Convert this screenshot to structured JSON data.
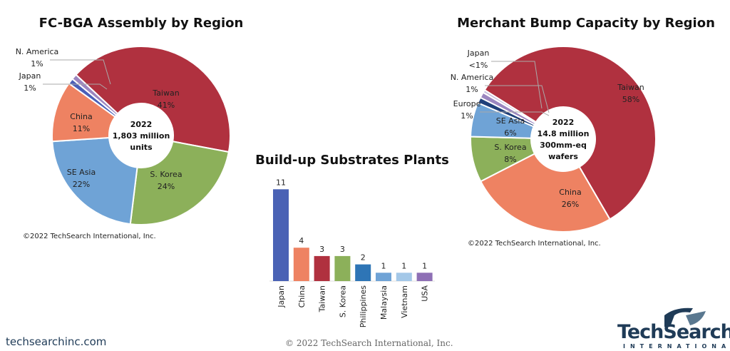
{
  "chart_data": [
    {
      "type": "pie",
      "title": "FC-BGA Assembly by Region",
      "center_text": [
        "2022",
        "1,803 million",
        "units"
      ],
      "categories": [
        "Taiwan",
        "S. Korea",
        "SE Asia",
        "China",
        "Japan",
        "N. America"
      ],
      "values": [
        41,
        24,
        22,
        11,
        1,
        1
      ],
      "value_labels": [
        "41%",
        "24%",
        "22%",
        "11%",
        "1%",
        "1%"
      ],
      "colors": [
        "#b0313f",
        "#8cb05a",
        "#6fa3d6",
        "#ee8262",
        "#4a5fb8",
        "#9b86c0"
      ],
      "copyright": "©2022 TechSearch International, Inc."
    },
    {
      "type": "bar",
      "title": "Build-up Substrates Plants",
      "categories": [
        "Japan",
        "China",
        "Taiwan",
        "S. Korea",
        "Philippines",
        "Malaysia",
        "Vietnam",
        "USA"
      ],
      "values": [
        11,
        4,
        3,
        3,
        2,
        1,
        1,
        1
      ],
      "colors": [
        "#4a62b5",
        "#ee8262",
        "#b0313f",
        "#8cb05a",
        "#2e75b6",
        "#6fa3d6",
        "#a4c8e8",
        "#8e6fb5"
      ]
    },
    {
      "type": "pie",
      "title": "Merchant Bump Capacity by Region",
      "center_text": [
        "2022",
        "14.8 million",
        "300mm-eq",
        "wafers"
      ],
      "categories": [
        "Taiwan",
        "China",
        "S. Korea",
        "SE Asia",
        "Europe",
        "N. America",
        "Japan"
      ],
      "values": [
        58,
        26,
        8,
        6,
        1,
        1,
        0.5
      ],
      "value_labels": [
        "58%",
        "26%",
        "8%",
        "6%",
        "1%",
        "1%",
        "<1%"
      ],
      "colors": [
        "#b0313f",
        "#ee8262",
        "#8cb05a",
        "#6fa3d6",
        "#1f3f7a",
        "#9b86c0",
        "#c9c0de"
      ],
      "copyright": "©2022 TechSearch International, Inc."
    }
  ],
  "footer": {
    "website": "techsearchinc.com",
    "copyright": "© 2022 TechSearch International, Inc.",
    "logo_text": "TechSearch",
    "logo_subtext": "INTERNATIONAL"
  }
}
